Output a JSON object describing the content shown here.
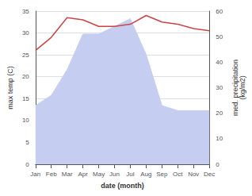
{
  "chart_data": {
    "type": "line",
    "xlabel": "date (month)",
    "ylabel": "max temp (C)",
    "y2label": "med. precipitation\n(kg/m2)",
    "categories": [
      "Jan",
      "Feb",
      "Mar",
      "Apr",
      "May",
      "Jun",
      "Jul",
      "Aug",
      "Sep",
      "Oct",
      "Nov",
      "Dec"
    ],
    "series": [
      {
        "type": "line",
        "color": "#cc4444",
        "values": [
          26,
          29,
          33.5,
          33.0,
          31.5,
          31.5,
          32.0,
          34.0,
          32.5,
          32.0,
          31.0,
          30.5
        ]
      },
      {
        "type": "area",
        "color": "#c5cef0",
        "axis": "y2",
        "values": [
          23,
          27,
          37,
          51,
          51,
          54,
          57,
          43,
          23,
          21,
          21,
          21
        ]
      }
    ],
    "ylim": [
      0,
      35
    ],
    "yticks": [
      0,
      5,
      10,
      15,
      20,
      25,
      30,
      35
    ],
    "y2lim": [
      0,
      60
    ],
    "y2ticks": [
      0,
      10,
      20,
      30,
      40,
      50,
      60
    ],
    "grid": true
  }
}
